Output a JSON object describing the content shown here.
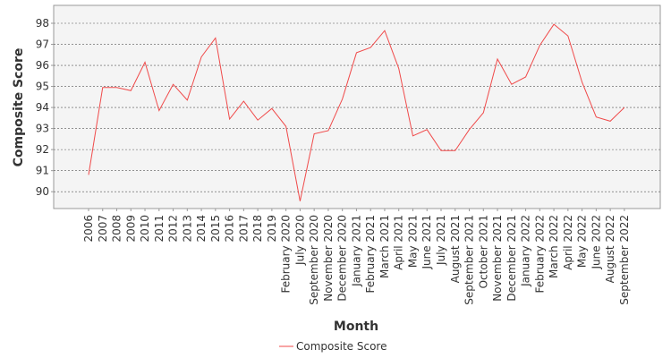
{
  "chart_data": {
    "type": "line",
    "xlabel": "Month",
    "ylabel": "Composite Score",
    "ylim": [
      89.2,
      98.85
    ],
    "yticks": [
      90,
      91,
      92,
      93,
      94,
      95,
      96,
      97,
      98
    ],
    "grid": "horizontal",
    "legend_position": "bottom",
    "categories": [
      "2006",
      "2007",
      "2008",
      "2009",
      "2010",
      "2011",
      "2012",
      "2013",
      "2014",
      "2015",
      "2016",
      "2017",
      "2018",
      "2019",
      "February 2020",
      "July 2020",
      "September 2020",
      "November 2020",
      "December 2020",
      "January 2021",
      "February 2021",
      "March 2021",
      "April 2021",
      "May 2021",
      "June 2021",
      "July 2021",
      "August 2021",
      "September 2021",
      "October 2021",
      "November 2021",
      "December 2021",
      "January 2022",
      "February 2022",
      "March 2022",
      "April 2022",
      "May 2022",
      "June 2022",
      "August 2022",
      "September 2022"
    ],
    "series": [
      {
        "name": "Composite Score",
        "color": "#f04a4a",
        "values": [
          90.8,
          94.95,
          94.95,
          94.8,
          96.15,
          93.85,
          95.1,
          94.35,
          96.4,
          97.3,
          93.45,
          94.3,
          93.4,
          93.95,
          93.1,
          89.55,
          92.75,
          92.9,
          94.4,
          96.6,
          96.85,
          97.65,
          95.85,
          92.65,
          92.95,
          91.95,
          91.95,
          92.95,
          93.75,
          96.3,
          95.1,
          95.45,
          96.95,
          97.95,
          97.4,
          95.2,
          93.55,
          93.35,
          94.0
        ]
      }
    ]
  }
}
